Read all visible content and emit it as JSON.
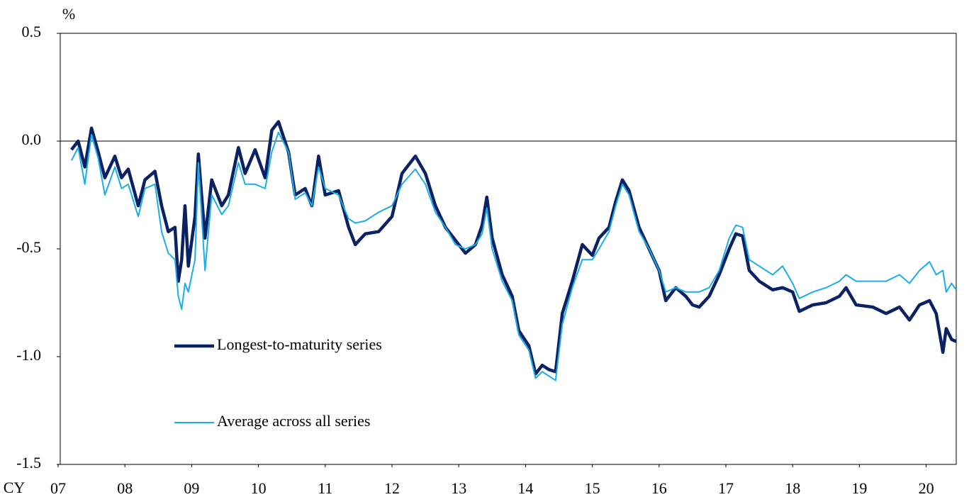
{
  "chart_data": {
    "type": "line",
    "y_label": "%",
    "x_label": "CY",
    "x": [
      2007.2,
      2007.3,
      2007.4,
      2007.45,
      2007.5,
      2007.6,
      2007.7,
      2007.85,
      2007.95,
      2008.05,
      2008.2,
      2008.3,
      2008.45,
      2008.55,
      2008.65,
      2008.75,
      2008.8,
      2008.85,
      2008.9,
      2008.95,
      2009.05,
      2009.1,
      2009.2,
      2009.3,
      2009.45,
      2009.55,
      2009.7,
      2009.8,
      2009.95,
      2010.1,
      2010.2,
      2010.3,
      2010.45,
      2010.55,
      2010.7,
      2010.8,
      2010.9,
      2011.0,
      2011.2,
      2011.35,
      2011.45,
      2011.6,
      2011.8,
      2012.0,
      2012.15,
      2012.35,
      2012.5,
      2012.65,
      2012.8,
      2012.95,
      2013.1,
      2013.25,
      2013.35,
      2013.42,
      2013.5,
      2013.65,
      2013.8,
      2013.9,
      2014.05,
      2014.15,
      2014.25,
      2014.35,
      2014.45,
      2014.55,
      2014.7,
      2014.85,
      2015.0,
      2015.1,
      2015.25,
      2015.35,
      2015.45,
      2015.55,
      2015.7,
      2015.85,
      2016.0,
      2016.1,
      2016.25,
      2016.4,
      2016.5,
      2016.6,
      2016.75,
      2016.9,
      2017.05,
      2017.15,
      2017.25,
      2017.35,
      2017.5,
      2017.7,
      2017.85,
      2018.0,
      2018.1,
      2018.3,
      2018.5,
      2018.7,
      2018.8,
      2018.95,
      2019.2,
      2019.4,
      2019.6,
      2019.75,
      2019.9,
      2020.05,
      2020.15,
      2020.25,
      2020.3,
      2020.38,
      2020.45
    ],
    "series": [
      {
        "name": "Longest-to-maturity series",
        "color": "#0a2163",
        "width": 4.5,
        "values": [
          -0.04,
          0.0,
          -0.12,
          -0.03,
          0.06,
          -0.05,
          -0.17,
          -0.07,
          -0.17,
          -0.13,
          -0.3,
          -0.18,
          -0.14,
          -0.3,
          -0.42,
          -0.4,
          -0.65,
          -0.55,
          -0.3,
          -0.58,
          -0.35,
          -0.06,
          -0.45,
          -0.18,
          -0.3,
          -0.25,
          -0.03,
          -0.15,
          -0.04,
          -0.17,
          0.05,
          0.09,
          -0.05,
          -0.25,
          -0.22,
          -0.3,
          -0.07,
          -0.25,
          -0.23,
          -0.4,
          -0.48,
          -0.43,
          -0.42,
          -0.35,
          -0.15,
          -0.07,
          -0.15,
          -0.3,
          -0.4,
          -0.46,
          -0.52,
          -0.48,
          -0.39,
          -0.26,
          -0.45,
          -0.62,
          -0.72,
          -0.88,
          -0.95,
          -1.08,
          -1.04,
          -1.06,
          -1.07,
          -0.8,
          -0.65,
          -0.48,
          -0.53,
          -0.45,
          -0.4,
          -0.28,
          -0.18,
          -0.23,
          -0.4,
          -0.5,
          -0.6,
          -0.74,
          -0.68,
          -0.72,
          -0.76,
          -0.77,
          -0.72,
          -0.62,
          -0.5,
          -0.43,
          -0.44,
          -0.6,
          -0.65,
          -0.69,
          -0.68,
          -0.7,
          -0.79,
          -0.76,
          -0.75,
          -0.72,
          -0.68,
          -0.76,
          -0.77,
          -0.8,
          -0.77,
          -0.83,
          -0.76,
          -0.74,
          -0.8,
          -0.98,
          -0.87,
          -0.92,
          -0.93
        ]
      },
      {
        "name": "Average across all series",
        "color": "#1aaee8",
        "width": 2,
        "values": [
          -0.09,
          -0.03,
          -0.2,
          -0.08,
          0.03,
          -0.08,
          -0.25,
          -0.12,
          -0.22,
          -0.2,
          -0.35,
          -0.22,
          -0.2,
          -0.42,
          -0.52,
          -0.55,
          -0.72,
          -0.78,
          -0.66,
          -0.7,
          -0.55,
          -0.1,
          -0.6,
          -0.25,
          -0.34,
          -0.3,
          -0.1,
          -0.2,
          -0.2,
          -0.22,
          -0.05,
          0.04,
          -0.05,
          -0.27,
          -0.24,
          -0.3,
          -0.12,
          -0.22,
          -0.25,
          -0.36,
          -0.38,
          -0.37,
          -0.33,
          -0.3,
          -0.2,
          -0.13,
          -0.2,
          -0.33,
          -0.4,
          -0.48,
          -0.5,
          -0.48,
          -0.43,
          -0.31,
          -0.5,
          -0.65,
          -0.74,
          -0.9,
          -0.97,
          -1.1,
          -1.07,
          -1.09,
          -1.11,
          -0.85,
          -0.68,
          -0.55,
          -0.55,
          -0.5,
          -0.42,
          -0.3,
          -0.2,
          -0.25,
          -0.42,
          -0.5,
          -0.6,
          -0.7,
          -0.68,
          -0.7,
          -0.7,
          -0.7,
          -0.68,
          -0.6,
          -0.45,
          -0.39,
          -0.4,
          -0.55,
          -0.58,
          -0.62,
          -0.58,
          -0.66,
          -0.73,
          -0.7,
          -0.68,
          -0.65,
          -0.62,
          -0.65,
          -0.65,
          -0.65,
          -0.62,
          -0.66,
          -0.6,
          -0.56,
          -0.62,
          -0.6,
          -0.7,
          -0.66,
          -0.69
        ]
      }
    ],
    "xlim": [
      2007,
      2020.45
    ],
    "xticks": [
      {
        "value": 2007,
        "label": "07"
      },
      {
        "value": 2008,
        "label": "08"
      },
      {
        "value": 2009,
        "label": "09"
      },
      {
        "value": 2010,
        "label": "10"
      },
      {
        "value": 2011,
        "label": "11"
      },
      {
        "value": 2012,
        "label": "12"
      },
      {
        "value": 2013,
        "label": "13"
      },
      {
        "value": 2014,
        "label": "14"
      },
      {
        "value": 2015,
        "label": "15"
      },
      {
        "value": 2016,
        "label": "16"
      },
      {
        "value": 2017,
        "label": "17"
      },
      {
        "value": 2018,
        "label": "18"
      },
      {
        "value": 2019,
        "label": "19"
      },
      {
        "value": 2020,
        "label": "20"
      }
    ],
    "ylim": [
      -1.5,
      0.5
    ],
    "yticks": [
      -1.5,
      {
        "value": -1,
        "label": "-1.0"
      },
      -0.5,
      {
        "value": 0,
        "label": "0.0"
      },
      0.5
    ],
    "zero_line": true,
    "grid": false,
    "legend": "lower left"
  }
}
